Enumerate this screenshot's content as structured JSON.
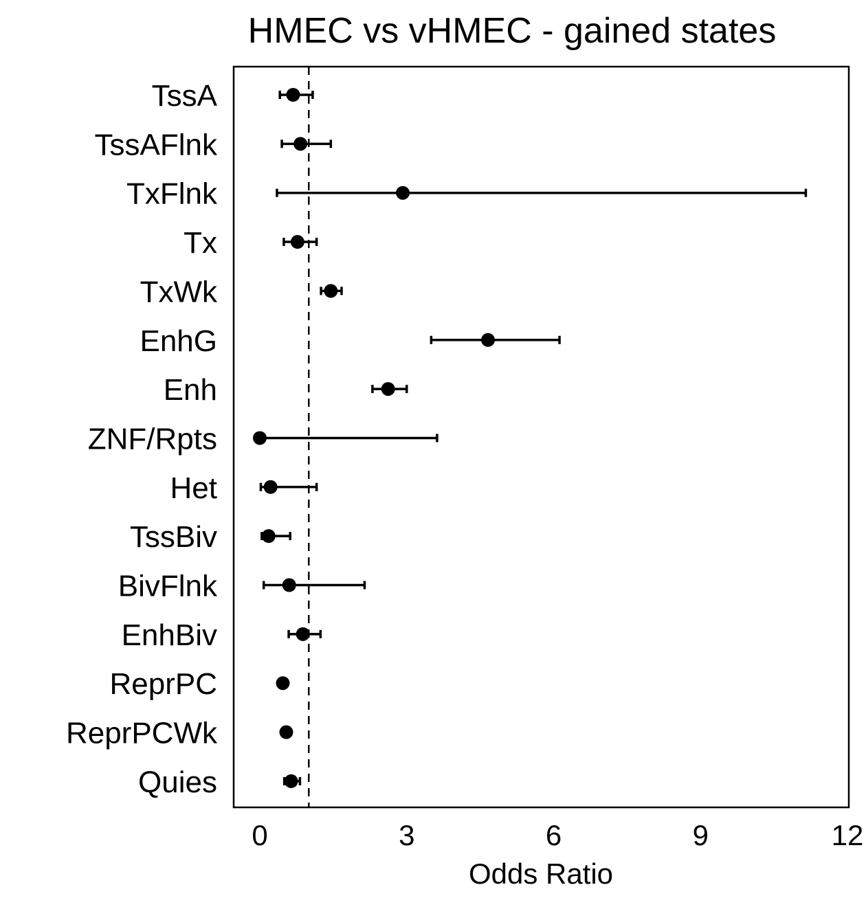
{
  "chart_data": {
    "type": "scatter",
    "subtype": "forest-plot",
    "title": "HMEC vs vHMEC - gained states",
    "xlabel": "Odds Ratio",
    "ylabel": "",
    "xlim": [
      -0.5,
      12.0
    ],
    "xticks": [
      0,
      3,
      6,
      9,
      12
    ],
    "xtick_labels": [
      "0",
      "3",
      "6",
      "9",
      "12"
    ],
    "reference_line": {
      "x": 1,
      "style": "dashed"
    },
    "grid": false,
    "legend": "none",
    "categories": [
      "TssA",
      "TssAFlnk",
      "TxFlnk",
      "Tx",
      "TxWk",
      "EnhG",
      "Enh",
      "ZNF/Rpts",
      "Het",
      "TssBiv",
      "BivFlnk",
      "EnhBiv",
      "ReprPC",
      "ReprPCWk",
      "Quies"
    ],
    "series": [
      {
        "values": [
          0.68,
          0.83,
          2.92,
          0.77,
          1.45,
          4.66,
          2.62,
          0.0,
          0.22,
          0.18,
          0.6,
          0.88,
          0.47,
          0.54,
          0.64
        ],
        "ci_low": [
          0.41,
          0.45,
          0.35,
          0.49,
          1.25,
          3.5,
          2.3,
          0.0,
          0.02,
          0.04,
          0.08,
          0.59,
          0.47,
          0.54,
          0.5
        ],
        "ci_high": [
          1.08,
          1.45,
          11.15,
          1.16,
          1.67,
          6.12,
          3.0,
          3.62,
          1.16,
          0.62,
          2.14,
          1.24,
          0.47,
          0.54,
          0.82
        ]
      }
    ],
    "colors": {
      "points": "#000000",
      "frame": "#000000"
    }
  }
}
